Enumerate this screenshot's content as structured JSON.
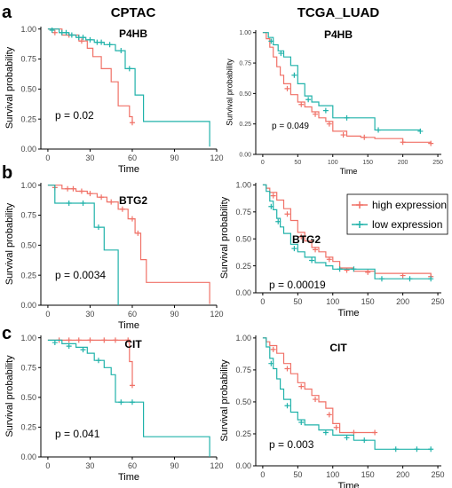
{
  "figure": {
    "column_titles": [
      "CPTAC",
      "TCGA_LUAD"
    ],
    "row_letters": [
      "a",
      "b",
      "c"
    ],
    "legend": {
      "labels": [
        "high expression",
        "low expression"
      ]
    }
  },
  "colors": {
    "high": "#f07167",
    "low": "#20b2aa"
  },
  "chart_data": [
    {
      "type": "line",
      "cohort": "CPTAC",
      "title": "P4HB",
      "xlabel": "Time",
      "ylabel": "Survival probability",
      "annotation": "p = 0.02",
      "xlim": [
        -5,
        120
      ],
      "ylim": [
        0,
        1.02
      ],
      "xticks": [
        0,
        30,
        60,
        90,
        120
      ],
      "yticks": [
        0,
        0.25,
        0.5,
        0.75,
        1
      ],
      "ytick_labels": [
        "0.00",
        "0.25",
        "0.50",
        "0.75",
        "1.00"
      ],
      "series": [
        {
          "key": "high",
          "x": [
            0,
            10,
            22,
            28,
            32,
            38,
            45,
            50,
            58,
            60
          ],
          "y": [
            1,
            0.95,
            0.9,
            0.84,
            0.77,
            0.67,
            0.56,
            0.36,
            0.27,
            0.22
          ],
          "censored": [
            [
              5,
              0.97
            ],
            [
              15,
              0.95
            ],
            [
              24,
              0.9
            ],
            [
              60,
              0.22
            ]
          ]
        },
        {
          "key": "low",
          "x": [
            0,
            8,
            15,
            20,
            27,
            33,
            40,
            48,
            55,
            62,
            68,
            115
          ],
          "y": [
            1,
            0.97,
            0.95,
            0.93,
            0.91,
            0.89,
            0.87,
            0.82,
            0.67,
            0.45,
            0.23,
            0.02
          ],
          "censored": [
            [
              3,
              0.99
            ],
            [
              10,
              0.97
            ],
            [
              13,
              0.97
            ],
            [
              17,
              0.95
            ],
            [
              22,
              0.93
            ],
            [
              25,
              0.93
            ],
            [
              30,
              0.91
            ],
            [
              35,
              0.89
            ],
            [
              38,
              0.89
            ],
            [
              44,
              0.87
            ],
            [
              52,
              0.82
            ],
            [
              58,
              0.67
            ]
          ]
        }
      ]
    },
    {
      "type": "line",
      "cohort": "TCGA_LUAD",
      "title": "P4HB",
      "xlabel": "Time",
      "ylabel": "Survival probability",
      "annotation": "p = 0.049",
      "xlim": [
        -10,
        255
      ],
      "ylim": [
        0,
        1.02
      ],
      "xticks": [
        0,
        50,
        100,
        150,
        200,
        250
      ],
      "yticks": [
        0,
        0.25,
        0.5,
        0.75,
        1
      ],
      "ytick_labels": [
        "0.00",
        "0.25",
        "0.50",
        "0.75",
        "1.00"
      ],
      "series": [
        {
          "key": "high",
          "x": [
            0,
            5,
            10,
            15,
            20,
            25,
            30,
            40,
            50,
            60,
            70,
            80,
            90,
            100,
            120,
            140,
            160,
            200,
            240
          ],
          "y": [
            1,
            0.95,
            0.88,
            0.8,
            0.72,
            0.65,
            0.58,
            0.49,
            0.43,
            0.39,
            0.35,
            0.3,
            0.27,
            0.19,
            0.15,
            0.14,
            0.13,
            0.1,
            0.09
          ],
          "censored": [
            [
              35,
              0.54
            ],
            [
              55,
              0.41
            ],
            [
              75,
              0.33
            ],
            [
              95,
              0.25
            ],
            [
              115,
              0.16
            ],
            [
              145,
              0.14
            ],
            [
              200,
              0.1
            ],
            [
              240,
              0.09
            ]
          ]
        },
        {
          "key": "low",
          "x": [
            0,
            8,
            15,
            22,
            30,
            40,
            50,
            60,
            70,
            80,
            100,
            110,
            160,
            225
          ],
          "y": [
            1,
            0.96,
            0.9,
            0.85,
            0.8,
            0.73,
            0.58,
            0.48,
            0.43,
            0.4,
            0.3,
            0.3,
            0.2,
            0.19
          ],
          "censored": [
            [
              12,
              0.93
            ],
            [
              26,
              0.83
            ],
            [
              45,
              0.65
            ],
            [
              65,
              0.45
            ],
            [
              90,
              0.36
            ],
            [
              120,
              0.3
            ],
            [
              165,
              0.2
            ],
            [
              225,
              0.19
            ]
          ]
        }
      ]
    },
    {
      "type": "line",
      "cohort": "CPTAC",
      "title": "BTG2",
      "xlabel": "Time",
      "ylabel": "Survival probability",
      "annotation": "p = 0.0034",
      "xlim": [
        -5,
        120
      ],
      "ylim": [
        0,
        1.02
      ],
      "xticks": [
        0,
        30,
        60,
        90,
        120
      ],
      "yticks": [
        0,
        0.25,
        0.5,
        0.75,
        1
      ],
      "ytick_labels": [
        "0.00",
        "0.25",
        "0.50",
        "0.75",
        "1.00"
      ],
      "series": [
        {
          "key": "high",
          "x": [
            0,
            10,
            20,
            28,
            35,
            42,
            50,
            57,
            62,
            66,
            70,
            115
          ],
          "y": [
            1,
            0.97,
            0.95,
            0.93,
            0.9,
            0.86,
            0.8,
            0.72,
            0.6,
            0.38,
            0.19,
            0.01
          ],
          "censored": [
            [
              5,
              0.98
            ],
            [
              14,
              0.97
            ],
            [
              18,
              0.97
            ],
            [
              24,
              0.95
            ],
            [
              30,
              0.93
            ],
            [
              38,
              0.9
            ],
            [
              45,
              0.86
            ],
            [
              53,
              0.8
            ],
            [
              60,
              0.72
            ],
            [
              64,
              0.6
            ]
          ]
        },
        {
          "key": "low",
          "x": [
            0,
            5,
            33,
            40,
            50
          ],
          "y": [
            1,
            0.85,
            0.65,
            0.46,
            0
          ],
          "censored": [
            [
              15,
              0.85
            ],
            [
              25,
              0.85
            ],
            [
              36,
              0.65
            ]
          ]
        }
      ]
    },
    {
      "type": "line",
      "cohort": "TCGA_LUAD",
      "title": "BTG2",
      "xlabel": "Time",
      "ylabel": "Survival probability",
      "annotation": "p = 0.00019",
      "xlim": [
        -10,
        255
      ],
      "ylim": [
        0,
        1.02
      ],
      "xticks": [
        0,
        50,
        100,
        150,
        200,
        250
      ],
      "yticks": [
        0,
        0.25,
        0.5,
        0.75,
        1
      ],
      "ytick_labels": [
        "0.00",
        "0.25",
        "0.50",
        "0.75",
        "1.00"
      ],
      "series": [
        {
          "key": "high",
          "x": [
            0,
            5,
            10,
            20,
            30,
            40,
            50,
            60,
            70,
            80,
            90,
            100,
            110,
            130,
            160,
            240
          ],
          "y": [
            1,
            0.97,
            0.93,
            0.86,
            0.78,
            0.67,
            0.56,
            0.48,
            0.42,
            0.38,
            0.33,
            0.29,
            0.23,
            0.2,
            0.18,
            0.15
          ],
          "censored": [
            [
              15,
              0.9
            ],
            [
              35,
              0.73
            ],
            [
              55,
              0.52
            ],
            [
              75,
              0.4
            ],
            [
              95,
              0.31
            ],
            [
              120,
              0.21
            ],
            [
              150,
              0.19
            ],
            [
              200,
              0.16
            ],
            [
              240,
              0.15
            ]
          ]
        },
        {
          "key": "low",
          "x": [
            0,
            5,
            10,
            15,
            20,
            25,
            30,
            40,
            50,
            60,
            75,
            90,
            100,
            160,
            240
          ],
          "y": [
            1,
            0.94,
            0.85,
            0.77,
            0.69,
            0.61,
            0.55,
            0.45,
            0.38,
            0.33,
            0.28,
            0.25,
            0.22,
            0.13,
            0.13
          ],
          "censored": [
            [
              12,
              0.8
            ],
            [
              22,
              0.66
            ],
            [
              45,
              0.41
            ],
            [
              70,
              0.3
            ],
            [
              110,
              0.22
            ],
            [
              130,
              0.22
            ],
            [
              170,
              0.13
            ],
            [
              210,
              0.13
            ],
            [
              240,
              0.13
            ]
          ]
        }
      ]
    },
    {
      "type": "line",
      "cohort": "CPTAC",
      "title": "CIT",
      "xlabel": "Time",
      "ylabel": "Survival probability",
      "annotation": "p = 0.041",
      "xlim": [
        -5,
        120
      ],
      "ylim": [
        0,
        1.02
      ],
      "xticks": [
        0,
        30,
        60,
        90,
        120
      ],
      "yticks": [
        0,
        0.25,
        0.5,
        0.75,
        1
      ],
      "ytick_labels": [
        "0.00",
        "0.25",
        "0.50",
        "0.75",
        "1.00"
      ],
      "series": [
        {
          "key": "high",
          "x": [
            0,
            55,
            58,
            60
          ],
          "y": [
            0.98,
            0.98,
            0.8,
            0.6
          ],
          "censored": [
            [
              8,
              0.98
            ],
            [
              15,
              0.98
            ],
            [
              22,
              0.98
            ],
            [
              30,
              0.98
            ],
            [
              40,
              0.98
            ],
            [
              48,
              0.98
            ],
            [
              57,
              0.98
            ],
            [
              60,
              0.6
            ]
          ]
        },
        {
          "key": "low",
          "x": [
            0,
            10,
            20,
            28,
            33,
            40,
            45,
            48,
            58,
            68,
            115
          ],
          "y": [
            0.98,
            0.95,
            0.92,
            0.87,
            0.81,
            0.75,
            0.69,
            0.46,
            0.46,
            0.17,
            0.0
          ],
          "censored": [
            [
              5,
              0.96
            ],
            [
              15,
              0.93
            ],
            [
              25,
              0.9
            ],
            [
              36,
              0.81
            ],
            [
              52,
              0.46
            ],
            [
              60,
              0.46
            ]
          ]
        }
      ]
    },
    {
      "type": "line",
      "cohort": "TCGA_LUAD",
      "title": "CIT",
      "xlabel": "Time",
      "ylabel": "Survival probability",
      "annotation": "p = 0.003",
      "xlim": [
        -10,
        255
      ],
      "ylim": [
        0,
        1.02
      ],
      "xticks": [
        0,
        50,
        100,
        150,
        200,
        250
      ],
      "yticks": [
        0,
        0.25,
        0.5,
        0.75,
        1
      ],
      "ytick_labels": [
        "0.00",
        "0.25",
        "0.50",
        "0.75",
        "1.00"
      ],
      "series": [
        {
          "key": "high",
          "x": [
            0,
            5,
            10,
            20,
            30,
            40,
            50,
            60,
            70,
            80,
            90,
            100,
            110,
            160
          ],
          "y": [
            1,
            0.97,
            0.94,
            0.88,
            0.8,
            0.72,
            0.65,
            0.6,
            0.55,
            0.5,
            0.45,
            0.33,
            0.26,
            0.26
          ],
          "censored": [
            [
              15,
              0.91
            ],
            [
              35,
              0.76
            ],
            [
              55,
              0.62
            ],
            [
              75,
              0.52
            ],
            [
              95,
              0.4
            ],
            [
              105,
              0.3
            ],
            [
              130,
              0.26
            ],
            [
              160,
              0.26
            ]
          ]
        },
        {
          "key": "low",
          "x": [
            0,
            5,
            10,
            15,
            20,
            25,
            30,
            40,
            50,
            60,
            80,
            100,
            130,
            160,
            240
          ],
          "y": [
            1,
            0.93,
            0.84,
            0.76,
            0.68,
            0.6,
            0.52,
            0.42,
            0.36,
            0.32,
            0.28,
            0.24,
            0.2,
            0.13,
            0.13
          ],
          "censored": [
            [
              12,
              0.8
            ],
            [
              35,
              0.47
            ],
            [
              55,
              0.34
            ],
            [
              90,
              0.26
            ],
            [
              120,
              0.22
            ],
            [
              145,
              0.2
            ],
            [
              190,
              0.13
            ],
            [
              220,
              0.13
            ],
            [
              240,
              0.13
            ]
          ]
        }
      ]
    }
  ]
}
